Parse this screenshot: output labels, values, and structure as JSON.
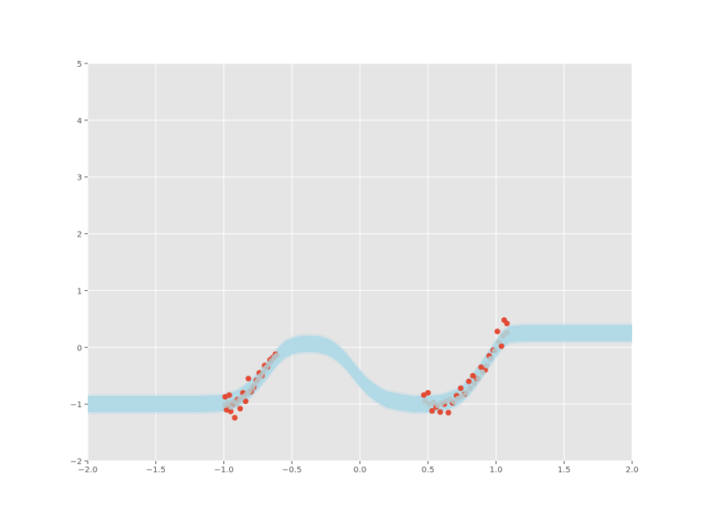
{
  "chart_data": {
    "type": "scatter",
    "title": "",
    "xlabel": "",
    "ylabel": "",
    "xlim": [
      -2.0,
      2.0
    ],
    "ylim": [
      -2,
      5
    ],
    "grid": true,
    "xticks": [
      -2.0,
      -1.5,
      -1.0,
      -0.5,
      0.0,
      0.5,
      1.0,
      1.5,
      2.0
    ],
    "xtick_labels": [
      "−2.0",
      "−1.5",
      "−1.0",
      "−0.5",
      "0.0",
      "0.5",
      "1.0",
      "1.5",
      "2.0"
    ],
    "yticks": [
      -2,
      -1,
      0,
      1,
      2,
      3,
      4,
      5
    ],
    "ytick_labels": [
      "−2",
      "−1",
      "0",
      "1",
      "2",
      "3",
      "4",
      "5"
    ],
    "colors": {
      "background": "#e5e5e5",
      "grid": "#ffffff",
      "band": "#add8e6",
      "observed": "#e24a33",
      "predicted": "#b5c4c8"
    },
    "series": [
      {
        "type": "band",
        "x": [
          -2.0,
          -1.8,
          -1.6,
          -1.4,
          -1.2,
          -1.0,
          -0.95,
          -0.9,
          -0.85,
          -0.8,
          -0.75,
          -0.7,
          -0.65,
          -0.6,
          -0.55,
          -0.5,
          -0.45,
          -0.4,
          -0.35,
          -0.3,
          -0.25,
          -0.2,
          -0.15,
          -0.1,
          -0.05,
          0.0,
          0.05,
          0.1,
          0.15,
          0.2,
          0.3,
          0.4,
          0.5,
          0.6,
          0.7,
          0.75,
          0.8,
          0.85,
          0.9,
          0.95,
          1.0,
          1.05,
          1.1,
          1.2,
          1.4,
          1.6,
          1.8,
          2.0
        ],
        "y": [
          -1.0,
          -1.0,
          -1.0,
          -1.0,
          -1.0,
          -0.98,
          -0.95,
          -0.9,
          -0.82,
          -0.72,
          -0.6,
          -0.45,
          -0.3,
          -0.15,
          -0.04,
          0.02,
          0.05,
          0.06,
          0.06,
          0.05,
          0.02,
          -0.04,
          -0.13,
          -0.25,
          -0.4,
          -0.55,
          -0.68,
          -0.78,
          -0.86,
          -0.92,
          -0.97,
          -1.0,
          -1.0,
          -0.98,
          -0.9,
          -0.82,
          -0.7,
          -0.55,
          -0.38,
          -0.2,
          -0.02,
          0.14,
          0.23,
          0.25,
          0.25,
          0.25,
          0.25,
          0.25
        ],
        "width": 0.18
      },
      {
        "type": "scatter",
        "x": [
          -0.99,
          -0.98,
          -0.97,
          -0.96,
          -0.95,
          -0.93,
          -0.92,
          -0.9,
          -0.88,
          -0.86,
          -0.84,
          -0.82,
          -0.8,
          -0.78,
          -0.76,
          -0.74,
          -0.72,
          -0.7,
          -0.68,
          -0.66,
          -0.64,
          -0.62,
          0.47,
          0.5,
          0.53,
          0.56,
          0.59,
          0.62,
          0.65,
          0.68,
          0.71,
          0.74,
          0.77,
          0.8,
          0.83,
          0.86,
          0.89,
          0.92,
          0.95,
          0.98,
          1.01,
          1.04,
          1.06,
          1.08
        ],
        "y": [
          -0.87,
          -1.1,
          -1.05,
          -0.84,
          -1.13,
          -1.0,
          -1.24,
          -0.92,
          -1.08,
          -0.8,
          -0.95,
          -0.55,
          -0.78,
          -0.7,
          -0.58,
          -0.45,
          -0.5,
          -0.32,
          -0.35,
          -0.22,
          -0.18,
          -0.12,
          -0.84,
          -0.8,
          -1.12,
          -1.05,
          -1.14,
          -1.0,
          -1.15,
          -0.98,
          -0.85,
          -0.72,
          -0.82,
          -0.6,
          -0.5,
          -0.55,
          -0.35,
          -0.4,
          -0.15,
          -0.05,
          0.28,
          0.02,
          0.48,
          0.42
        ],
        "name": ""
      },
      {
        "type": "scatter",
        "x": [
          -0.99,
          -0.97,
          -0.95,
          -0.93,
          -0.91,
          -0.89,
          -0.87,
          -0.85,
          -0.83,
          -0.81,
          -0.79,
          -0.77,
          -0.75,
          -0.73,
          -0.71,
          -0.69,
          -0.67,
          -0.65,
          -0.63,
          -0.61,
          0.48,
          0.51,
          0.54,
          0.57,
          0.6,
          0.63,
          0.66,
          0.69,
          0.72,
          0.75,
          0.78,
          0.81,
          0.84,
          0.87,
          0.9,
          0.93,
          0.96,
          0.99,
          1.02,
          1.05,
          1.08
        ],
        "y": [
          -1.02,
          -0.98,
          -1.05,
          -0.96,
          -1.0,
          -0.93,
          -0.9,
          -0.86,
          -0.82,
          -0.77,
          -0.7,
          -0.64,
          -0.58,
          -0.5,
          -0.44,
          -0.36,
          -0.3,
          -0.24,
          -0.18,
          -0.14,
          -0.95,
          -1.0,
          -0.97,
          -1.02,
          -0.99,
          -0.95,
          -0.92,
          -0.96,
          -0.9,
          -0.86,
          -0.8,
          -0.72,
          -0.64,
          -0.55,
          -0.44,
          -0.32,
          -0.2,
          -0.06,
          0.1,
          0.2,
          0.26
        ],
        "name": ""
      }
    ]
  }
}
